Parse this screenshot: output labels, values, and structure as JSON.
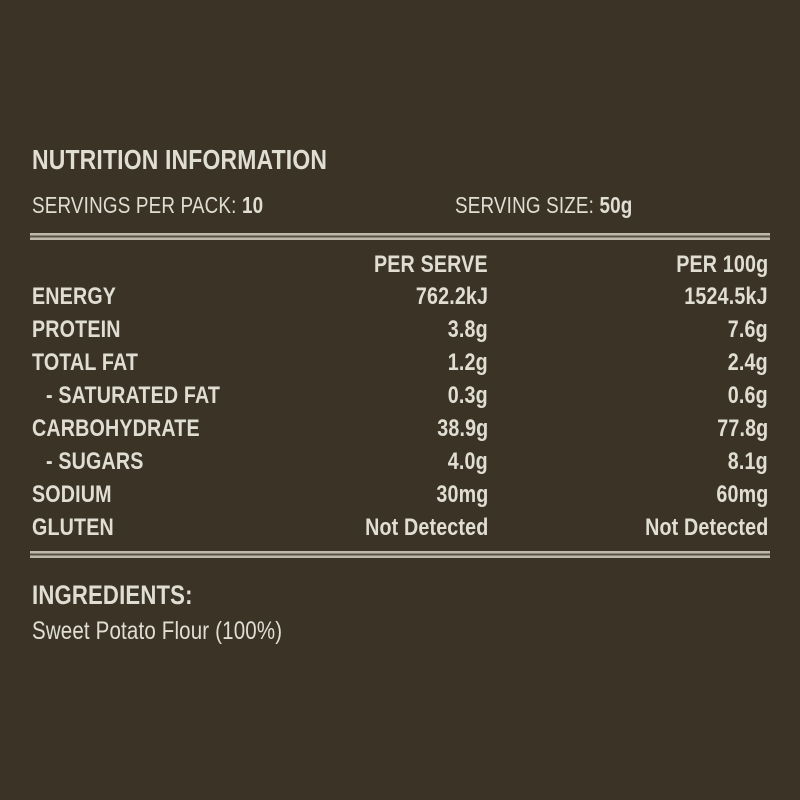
{
  "label": {
    "title": "NUTRITION INFORMATION",
    "servings_per_pack_label": "SERVINGS PER PACK:",
    "servings_per_pack_value": "10",
    "serving_size_label": "SERVING SIZE:",
    "serving_size_value": "50g",
    "columns": {
      "per_serve": "PER SERVE",
      "per_100g": "PER 100g"
    },
    "rows": [
      {
        "name": "ENERGY",
        "per_serve": "762.2kJ",
        "per_100g": "1524.5kJ"
      },
      {
        "name": "PROTEIN",
        "per_serve": "3.8g",
        "per_100g": "7.6g"
      },
      {
        "name": "TOTAL FAT",
        "per_serve": "1.2g",
        "per_100g": "2.4g"
      },
      {
        "name": "- SATURATED FAT",
        "per_serve": "0.3g",
        "per_100g": "0.6g"
      },
      {
        "name": "CARBOHYDRATE",
        "per_serve": "38.9g",
        "per_100g": "77.8g"
      },
      {
        "name": "- SUGARS",
        "per_serve": "4.0g",
        "per_100g": "8.1g"
      },
      {
        "name": "SODIUM",
        "per_serve": "30mg",
        "per_100g": "60mg"
      },
      {
        "name": "GLUTEN",
        "per_serve": "Not Detected",
        "per_100g": "Not Detected"
      }
    ],
    "ingredients_title": "INGREDIENTS:",
    "ingredients_text": "Sweet Potato Flour (100%)"
  },
  "colors": {
    "background": "#3a3326",
    "text": "#e0ddd3",
    "divider_light": "#beb8aa",
    "divider_dark": "#565140"
  }
}
